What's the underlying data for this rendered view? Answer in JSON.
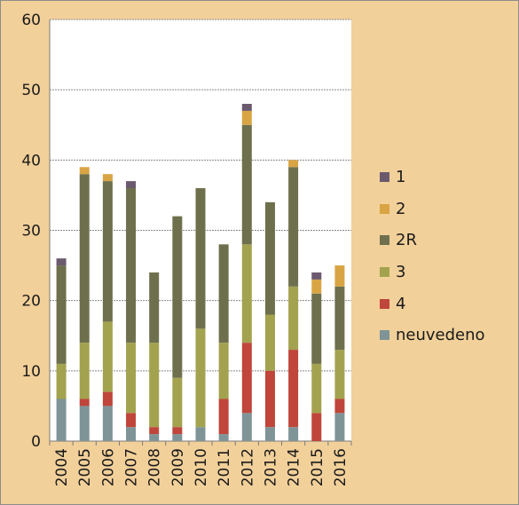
{
  "chart_data": {
    "type": "bar",
    "stacked": true,
    "categories": [
      "2004",
      "2005",
      "2006",
      "2007",
      "2008",
      "2009",
      "2010",
      "2011",
      "2012",
      "2013",
      "2014",
      "2015",
      "2016"
    ],
    "ylim": [
      0,
      60
    ],
    "yticks": [
      0,
      10,
      20,
      30,
      40,
      50,
      60
    ],
    "grid": true,
    "legend_position": "right",
    "series": [
      {
        "name": "neuvedeno",
        "color": "#7f9497",
        "values": [
          6,
          5,
          5,
          2,
          1,
          1,
          2,
          1,
          4,
          2,
          2,
          0,
          4
        ]
      },
      {
        "name": "4",
        "color": "#c0453a",
        "values": [
          0,
          1,
          2,
          2,
          1,
          1,
          0,
          5,
          10,
          8,
          11,
          4,
          2
        ]
      },
      {
        "name": "3",
        "color": "#a3a24f",
        "values": [
          5,
          8,
          10,
          10,
          12,
          7,
          14,
          8,
          14,
          8,
          9,
          7,
          7
        ]
      },
      {
        "name": "2R",
        "color": "#6e704d",
        "values": [
          14,
          24,
          20,
          22,
          10,
          23,
          20,
          14,
          17,
          16,
          17,
          10,
          9
        ]
      },
      {
        "name": "2",
        "color": "#d9a443",
        "values": [
          0,
          1,
          1,
          0,
          0,
          0,
          0,
          0,
          2,
          0,
          1,
          2,
          3
        ]
      },
      {
        "name": "1",
        "color": "#6b5a6e",
        "values": [
          1,
          0,
          0,
          1,
          0,
          0,
          0,
          0,
          1,
          0,
          0,
          1,
          0
        ]
      }
    ],
    "legend_order": [
      "1",
      "2",
      "2R",
      "3",
      "4",
      "neuvedeno"
    ]
  }
}
